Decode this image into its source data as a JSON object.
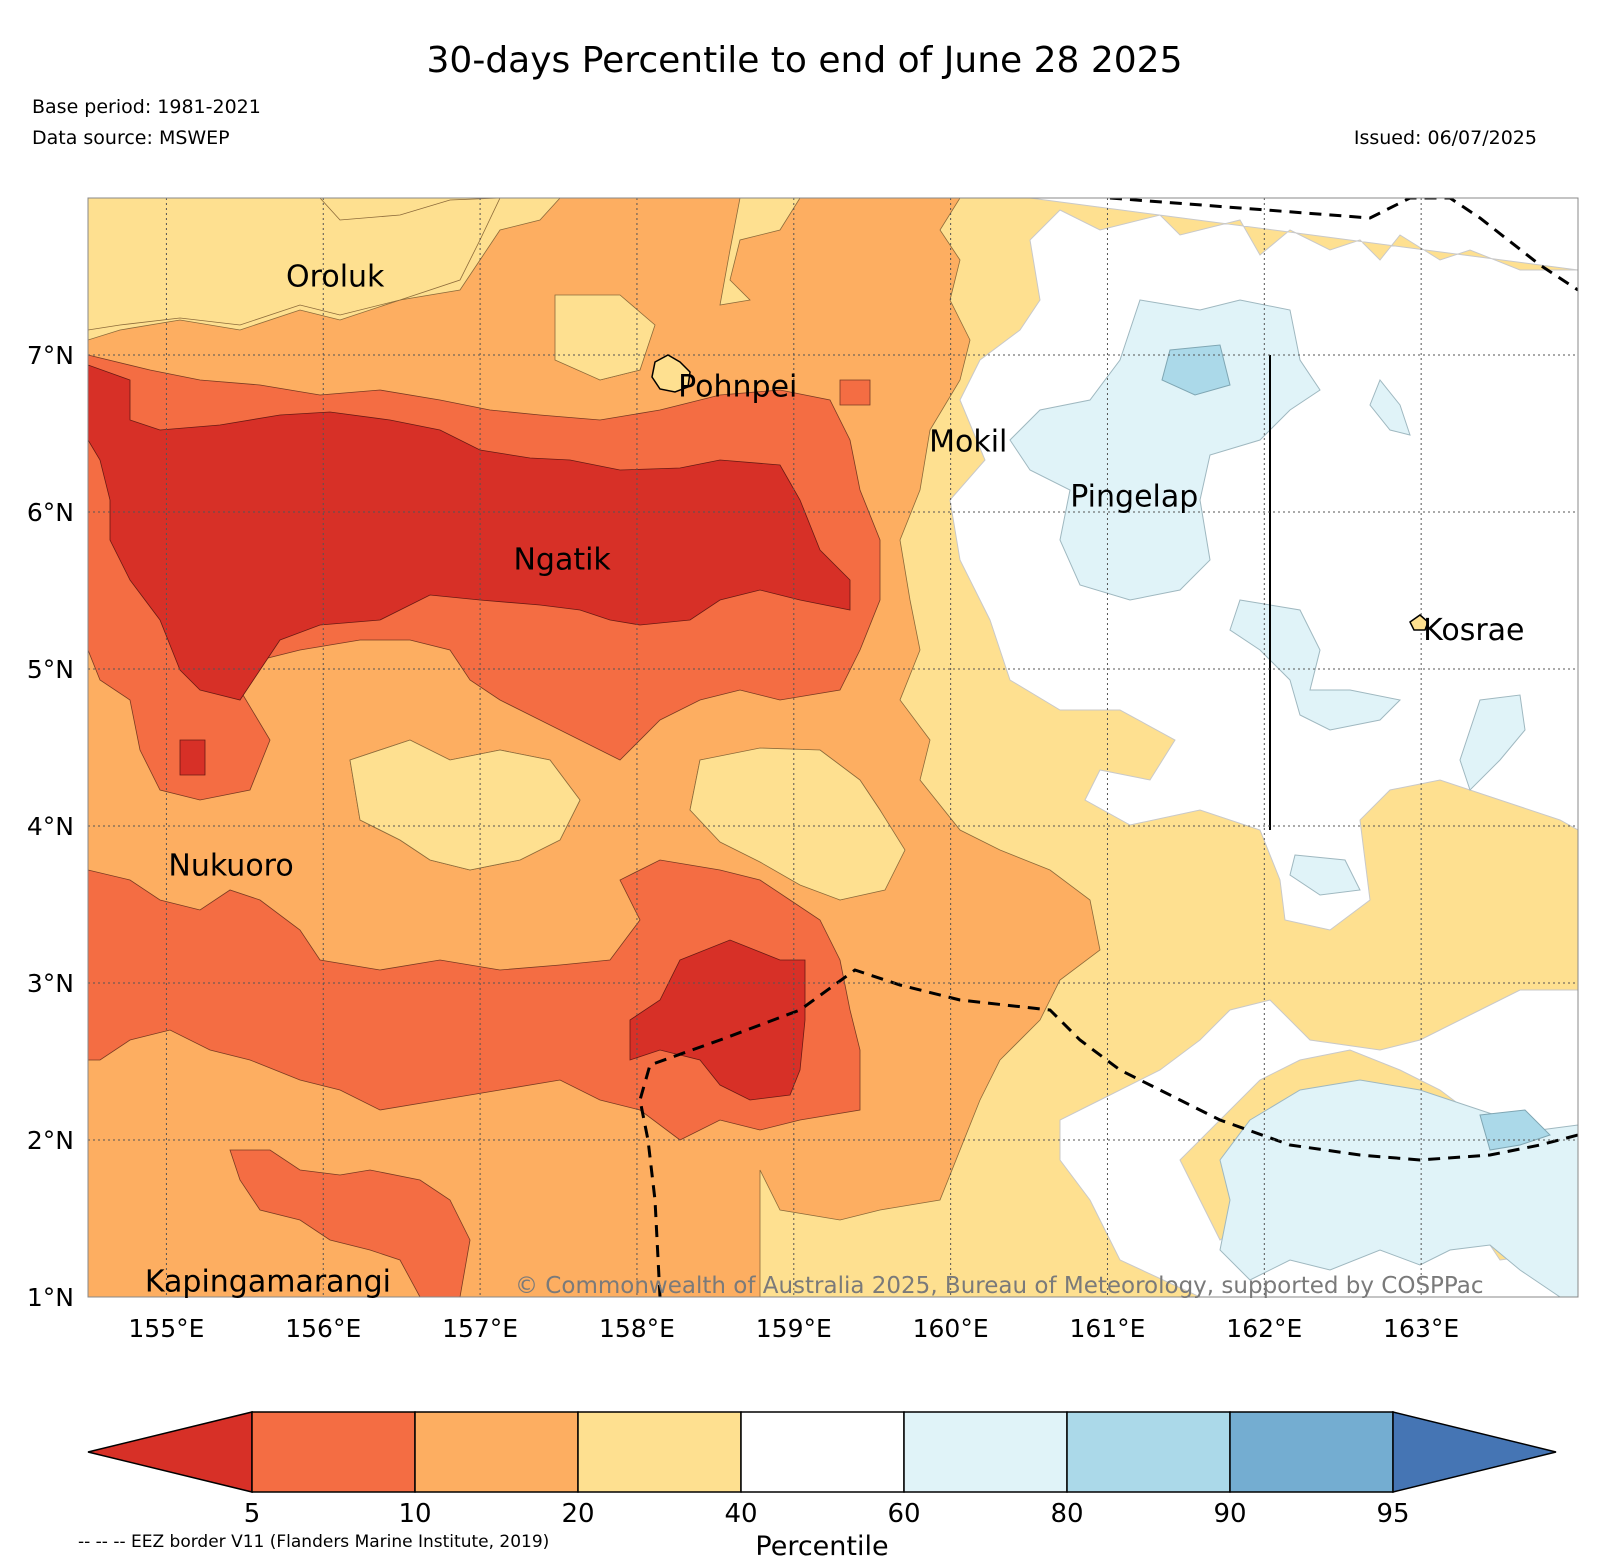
{
  "title": "30-days Percentile to end of June 28 2025",
  "base_period": "Base period: 1981-2021",
  "data_source": "Data source: MSWEP",
  "issued": "Issued: 06/07/2025",
  "copyright": "© Commonwealth of Australia 2025, Bureau of Meteorology, supported by COSPPac",
  "eez_note": "-- -- -- EEZ border V11 (Flanders Marine Institute, 2019)",
  "map": {
    "lon_range": [
      154.5,
      164.0
    ],
    "lat_range": [
      1.0,
      8.0
    ],
    "lon_ticks": [
      {
        "value": 155,
        "label": "155°E"
      },
      {
        "value": 156,
        "label": "156°E"
      },
      {
        "value": 157,
        "label": "157°E"
      },
      {
        "value": 158,
        "label": "158°E"
      },
      {
        "value": 159,
        "label": "159°E"
      },
      {
        "value": 160,
        "label": "160°E"
      },
      {
        "value": 161,
        "label": "161°E"
      },
      {
        "value": 162,
        "label": "162°E"
      },
      {
        "value": 163,
        "label": "163°E"
      }
    ],
    "lat_ticks": [
      {
        "value": 1,
        "label": "1°N"
      },
      {
        "value": 2,
        "label": "2°N"
      },
      {
        "value": 3,
        "label": "3°N"
      },
      {
        "value": 4,
        "label": "4°N"
      },
      {
        "value": 5,
        "label": "5°N"
      },
      {
        "value": 6,
        "label": "6°N"
      },
      {
        "value": 7,
        "label": "7°N"
      }
    ],
    "places": [
      {
        "name": "Oroluk",
        "lon": 155.75,
        "lat": 7.55
      },
      {
        "name": "Pohnpei",
        "lon": 158.25,
        "lat": 6.85
      },
      {
        "name": "Mokil",
        "lon": 159.85,
        "lat": 6.5
      },
      {
        "name": "Pingelap",
        "lon": 160.75,
        "lat": 6.15
      },
      {
        "name": "Ngatik",
        "lon": 157.2,
        "lat": 5.75
      },
      {
        "name": "Kosrae",
        "lon": 163.0,
        "lat": 5.3
      },
      {
        "name": "Nukuoro",
        "lon": 155.0,
        "lat": 3.8
      },
      {
        "name": "Kapingamarangi",
        "lon": 154.85,
        "lat": 1.15
      }
    ]
  },
  "colorbar": {
    "title": "Percentile",
    "ticks": [
      "5",
      "10",
      "20",
      "40",
      "60",
      "80",
      "90",
      "95"
    ],
    "colors": {
      "below_5": "#d73027",
      "5_10": "#f46d43",
      "10_20": "#fdae61",
      "20_40": "#fee090",
      "40_60": "#ffffff",
      "60_80": "#e0f3f8",
      "80_90": "#abd9e9",
      "90_95": "#74add1",
      "above_95": "#4575b4"
    }
  }
}
